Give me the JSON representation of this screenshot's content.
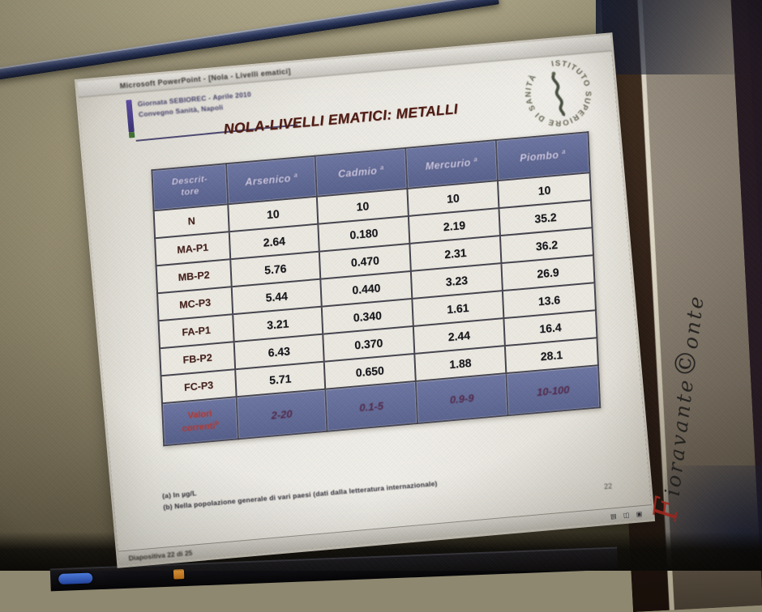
{
  "background": {
    "wall_color": "#8e8870",
    "monitor_rod_color": "#243055",
    "side_strip_color": "#958b7c",
    "corner_navy": "#121a32"
  },
  "watermark": {
    "lead": "F",
    "lead_color": "#c0271f",
    "body": "ioravante",
    "copyright": "©",
    "tail": "onte"
  },
  "window": {
    "titlebar": {
      "title": "Microsoft PowerPoint - [Nola - Livelli ematici]"
    },
    "statusbar": {
      "left": "Diapositiva 22 di 25",
      "icons": [
        "▤",
        "◫",
        "▣"
      ]
    }
  },
  "taskbar": {
    "items": [
      "start-button",
      "powerpoint-task-icon"
    ]
  },
  "slide": {
    "note_line1": "Giornata SEBIOREC - Aprile 2010",
    "note_line2": "Convegno Sanità, Napoli",
    "title": "NOLA-LIVELLI EMATICI: METALLI",
    "logo_ring_text": "ISTITUTO SUPERIORE DI SANITÀ",
    "page_number": "22",
    "footnote_a": "(a)  In µg/L",
    "footnote_b": "(b)  Nella popolazione generale di vari paesi (dati dalla letteratura internazionale)",
    "table": {
      "row_header": {
        "line1": "Descrit-",
        "line2": "tore"
      },
      "columns": [
        {
          "label": "Arsenico",
          "sup": "a"
        },
        {
          "label": "Cadmio",
          "sup": "a"
        },
        {
          "label": "Mercurio",
          "sup": "a"
        },
        {
          "label": "Piombo",
          "sup": "a"
        }
      ],
      "rows": [
        {
          "label": "N",
          "values": [
            "10",
            "10",
            "10",
            "10"
          ]
        },
        {
          "label": "MA-P1",
          "values": [
            "2.64",
            "0.180",
            "2.19",
            "35.2"
          ]
        },
        {
          "label": "MB-P2",
          "values": [
            "5.76",
            "0.470",
            "2.31",
            "36.2"
          ]
        },
        {
          "label": "MC-P3",
          "values": [
            "5.44",
            "0.440",
            "3.23",
            "26.9"
          ]
        },
        {
          "label": "FA-P1",
          "values": [
            "3.21",
            "0.340",
            "1.61",
            "13.6"
          ]
        },
        {
          "label": "FB-P2",
          "values": [
            "6.43",
            "0.370",
            "2.44",
            "16.4"
          ]
        },
        {
          "label": "FC-P3",
          "values": [
            "5.71",
            "0.650",
            "1.88",
            "28.1"
          ]
        }
      ],
      "footer": {
        "label_line1": "Valori",
        "label_line2": "correnti",
        "sup": "b",
        "values": [
          "2-20",
          "0.1-5",
          "0.9-9",
          "10-100"
        ]
      }
    }
  }
}
